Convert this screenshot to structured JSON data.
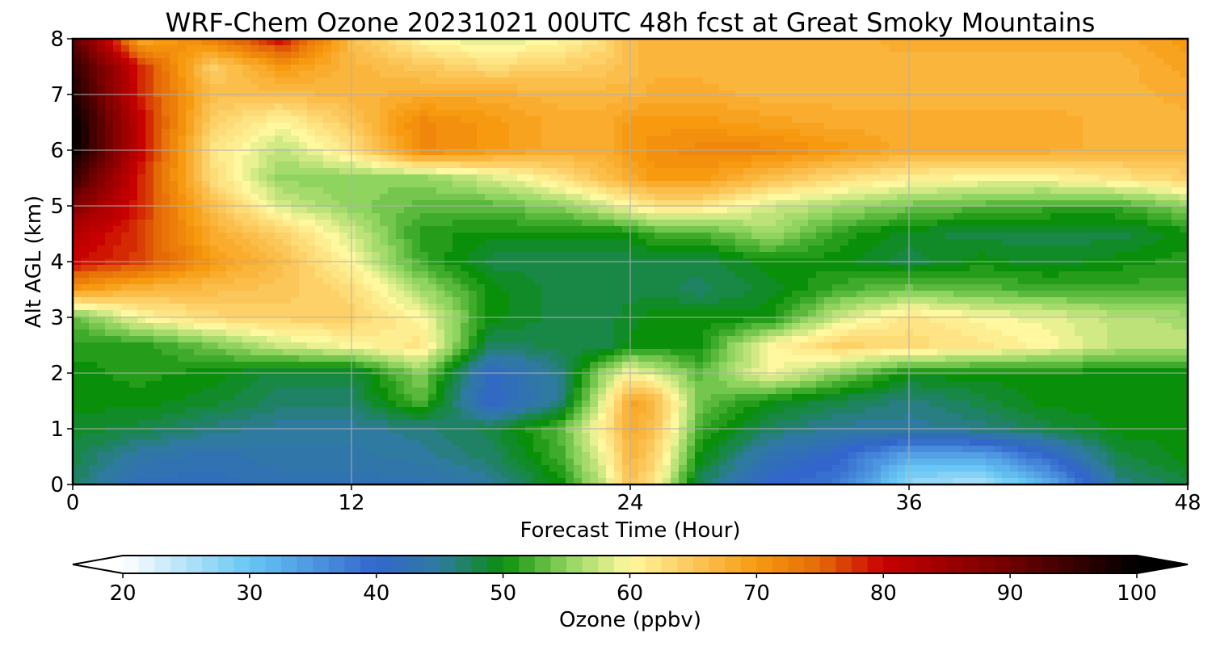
{
  "chart_data": {
    "type": "heatmap",
    "title": "WRF-Chem Ozone  20231021 00UTC 48h fcst at Great Smoky Mountains",
    "xlabel": "Forecast Time (Hour)",
    "ylabel": "Alt AGL (km)",
    "x_ticks": [
      "0",
      "12",
      "24",
      "36",
      "48"
    ],
    "y_ticks": [
      "0",
      "1",
      "2",
      "3",
      "4",
      "5",
      "6",
      "7",
      "8"
    ],
    "xlim": [
      0,
      48
    ],
    "ylim": [
      0,
      8
    ],
    "grid": true,
    "colorbar": {
      "label": "Ozone  (ppbv)",
      "range": [
        20,
        100
      ],
      "extend": "both",
      "ticks": [
        "20",
        "30",
        "40",
        "50",
        "60",
        "70",
        "80",
        "90",
        "100"
      ],
      "stops": [
        {
          "value": 20,
          "color": "#ffffff"
        },
        {
          "value": 30,
          "color": "#68c6f4"
        },
        {
          "value": 40,
          "color": "#3366cc"
        },
        {
          "value": 45,
          "color": "#2f7aa0"
        },
        {
          "value": 50,
          "color": "#0a8f0a"
        },
        {
          "value": 55,
          "color": "#8fd45f"
        },
        {
          "value": 60,
          "color": "#fff8a0"
        },
        {
          "value": 65,
          "color": "#fcc75a"
        },
        {
          "value": 70,
          "color": "#f79a10"
        },
        {
          "value": 75,
          "color": "#e46a08"
        },
        {
          "value": 80,
          "color": "#c80000"
        },
        {
          "value": 90,
          "color": "#700000"
        },
        {
          "value": 100,
          "color": "#000000"
        }
      ]
    },
    "x": [
      0,
      3,
      6,
      9,
      12,
      15,
      18,
      21,
      23,
      24,
      25,
      27,
      30,
      33,
      36,
      39,
      42,
      45,
      48
    ],
    "y": [
      0,
      0.5,
      1,
      1.5,
      2,
      2.5,
      3,
      3.5,
      4,
      4.5,
      5,
      5.5,
      6,
      6.5,
      7,
      7.5,
      8
    ],
    "z": [
      [
        47,
        42,
        42,
        43,
        43,
        43,
        45,
        50,
        58,
        66,
        62,
        47,
        40,
        38,
        27,
        25,
        32,
        46,
        48
      ],
      [
        48,
        44,
        43,
        44,
        44,
        45,
        47,
        52,
        60,
        67,
        64,
        50,
        43,
        40,
        33,
        33,
        40,
        48,
        50
      ],
      [
        49,
        48,
        46,
        45,
        45,
        46,
        48,
        53,
        62,
        68,
        66,
        52,
        47,
        45,
        45,
        46,
        48,
        50,
        50
      ],
      [
        50,
        50,
        49,
        47,
        47,
        53,
        40,
        46,
        60,
        69,
        67,
        54,
        50,
        48,
        46,
        48,
        50,
        50,
        50
      ],
      [
        50,
        51,
        50,
        48,
        48,
        55,
        41,
        46,
        56,
        60,
        58,
        53,
        60,
        55,
        50,
        50,
        50,
        50,
        50
      ],
      [
        51,
        51,
        54,
        58,
        60,
        62,
        47,
        48,
        48,
        50,
        50,
        50,
        60,
        64,
        63,
        62,
        60,
        57,
        57
      ],
      [
        53,
        60,
        63,
        64,
        64,
        60,
        50,
        48,
        48,
        49,
        50,
        50,
        50,
        58,
        62,
        60,
        59,
        57,
        56
      ],
      [
        70,
        67,
        66,
        65,
        63,
        56,
        50,
        48,
        48,
        48,
        48,
        47,
        49,
        52,
        54,
        53,
        52,
        52,
        52
      ],
      [
        80,
        77,
        70,
        66,
        60,
        52,
        48,
        48,
        48,
        48,
        48,
        48,
        50,
        50,
        48,
        50,
        49,
        50,
        51
      ],
      [
        82,
        77,
        68,
        64,
        58,
        51,
        50,
        50,
        50,
        50,
        52,
        52,
        56,
        51,
        49,
        48,
        48,
        48,
        50
      ],
      [
        88,
        78,
        66,
        58,
        55,
        53,
        53,
        55,
        58,
        60,
        62,
        62,
        58,
        56,
        54,
        53,
        52,
        52,
        55
      ],
      [
        95,
        78,
        63,
        55,
        55,
        55,
        58,
        62,
        66,
        68,
        70,
        70,
        66,
        63,
        61,
        60,
        60,
        62,
        64
      ],
      [
        100,
        80,
        62,
        57,
        62,
        72,
        70,
        68,
        68,
        70,
        71,
        72,
        72,
        70,
        68,
        68,
        68,
        67,
        67
      ],
      [
        100,
        80,
        64,
        60,
        65,
        72,
        70,
        68,
        68,
        70,
        70,
        70,
        69,
        68,
        68,
        68,
        68,
        67,
        67
      ],
      [
        98,
        78,
        66,
        66,
        67,
        68,
        68,
        67,
        67,
        67,
        68,
        68,
        67,
        67,
        67,
        67,
        67,
        67,
        68
      ],
      [
        96,
        78,
        64,
        70,
        67,
        65,
        63,
        64,
        65,
        66,
        67,
        67,
        67,
        67,
        67,
        67,
        67,
        67,
        69
      ],
      [
        92,
        68,
        73,
        80,
        66,
        60,
        58,
        60,
        63,
        66,
        67,
        67,
        67,
        67,
        68,
        68,
        68,
        68,
        70
      ]
    ]
  }
}
